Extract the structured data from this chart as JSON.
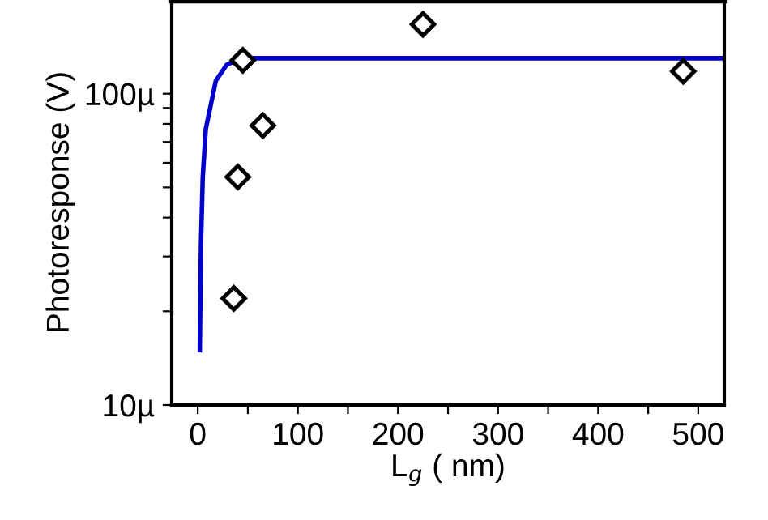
{
  "chart_data": {
    "type": "scatter",
    "xlabel": "L$_{g}$ ( nm)",
    "ylabel": "Photoresponse (V)",
    "log": "y",
    "xlim": [
      -26,
      526
    ],
    "ylim": [
      10,
      200
    ],
    "xticks": [
      0,
      {
        "value": 50,
        "label": null
      },
      100,
      {
        "value": 150,
        "label": null
      },
      200,
      {
        "value": 250,
        "label": null
      },
      300,
      {
        "value": 350,
        "label": null
      },
      400,
      {
        "value": 450,
        "label": null
      },
      500
    ],
    "yticks": [
      {
        "value": 10,
        "label": "10µ"
      },
      {
        "value": 20,
        "label": null
      },
      {
        "value": 30,
        "label": null
      },
      {
        "value": 40,
        "label": null
      },
      {
        "value": 50,
        "label": null
      },
      {
        "value": 60,
        "label": null
      },
      {
        "value": 70,
        "label": null
      },
      {
        "value": 80,
        "label": null
      },
      {
        "value": 90,
        "label": null
      },
      {
        "value": 100,
        "label": "100µ"
      }
    ],
    "grid": false,
    "legend": false,
    "series": [
      {
        "type": "line",
        "color": "#0000cc",
        "marker": "none",
        "line_style": "solid",
        "x": [
          2,
          3.2,
          5,
          8,
          18,
          29,
          45,
          526
        ],
        "values": [
          15,
          33,
          54,
          77,
          110,
          124,
          130,
          130
        ]
      },
      {
        "color": "#000000",
        "marker": "diamond",
        "x": [
          36,
          40,
          45,
          65,
          225,
          485
        ],
        "values": [
          22,
          54,
          128,
          79,
          167,
          118
        ]
      }
    ]
  }
}
